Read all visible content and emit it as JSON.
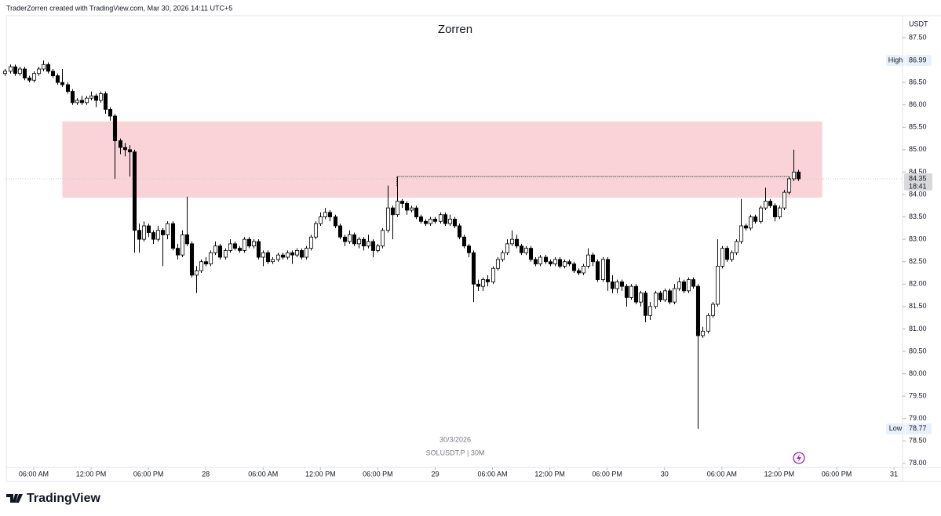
{
  "header": {
    "text": "TraderZorren created with TradingView.com, Mar 30, 2026 14:11 UTC+5"
  },
  "chart_data": {
    "type": "candlestick",
    "title": "Zorren",
    "currency": "USDT",
    "date_label": "30/3/2026",
    "symbol": "SOLUSDT.P | 30M",
    "xlim": [
      0.26,
      187.8
    ],
    "ylim": [
      77.91,
      87.99
    ],
    "xticks": [
      {
        "value": 6,
        "label": "06:00 AM"
      },
      {
        "value": 18,
        "label": "12:00 PM"
      },
      {
        "value": 30,
        "label": "06:00 PM"
      },
      {
        "value": 42,
        "label": "28"
      },
      {
        "value": 54,
        "label": "06:00 AM"
      },
      {
        "value": 66,
        "label": "12:00 PM"
      },
      {
        "value": 78,
        "label": "06:00 PM"
      },
      {
        "value": 90,
        "label": "29"
      },
      {
        "value": 102,
        "label": "06:00 AM"
      },
      {
        "value": 114,
        "label": "12:00 PM"
      },
      {
        "value": 126,
        "label": "06:00 PM"
      },
      {
        "value": 138,
        "label": "30"
      },
      {
        "value": 150,
        "label": "06:00 AM"
      },
      {
        "value": 162,
        "label": "12:00 PM"
      },
      {
        "value": 174,
        "label": "06:00 PM"
      },
      {
        "value": 186,
        "label": "31"
      }
    ],
    "yticks": [
      {
        "value": 87.5,
        "label": "87.50"
      },
      {
        "value": 86.5,
        "label": "86.50"
      },
      {
        "value": 86,
        "label": "86.00"
      },
      {
        "value": 85.5,
        "label": "85.50"
      },
      {
        "value": 85,
        "label": "85.00"
      },
      {
        "value": 84.5,
        "label": "84.50"
      },
      {
        "value": 84,
        "label": "84.00"
      },
      {
        "value": 83.5,
        "label": "83.50"
      },
      {
        "value": 83,
        "label": "83.00"
      },
      {
        "value": 82.5,
        "label": "82.50"
      },
      {
        "value": 82,
        "label": "82.00"
      },
      {
        "value": 81.5,
        "label": "81.50"
      },
      {
        "value": 81,
        "label": "81.00"
      },
      {
        "value": 80.5,
        "label": "80.50"
      },
      {
        "value": 80,
        "label": "80.00"
      },
      {
        "value": 79.5,
        "label": "79.50"
      },
      {
        "value": 79,
        "label": "79.00"
      },
      {
        "value": 78.5,
        "label": "78.50"
      },
      {
        "value": 78,
        "label": "78.00"
      }
    ],
    "up_color": "#ffffff",
    "down_color": "#000000",
    "high": {
      "label": "High",
      "value": 86.99
    },
    "low": {
      "label": "Low",
      "value": 78.77
    },
    "last_price": {
      "value": 84.35,
      "countdown": "18:41"
    },
    "zone": {
      "top": 85.63,
      "bottom": 83.93,
      "start": 12,
      "end": 171,
      "color": "#f9d3d7"
    },
    "level": {
      "value": 84.4,
      "start": 82,
      "end": 164
    },
    "candles": [
      [
        86.7,
        86.8,
        86.65,
        86.75
      ],
      [
        86.75,
        86.9,
        86.7,
        86.85
      ],
      [
        86.85,
        86.9,
        86.65,
        86.7
      ],
      [
        86.7,
        86.85,
        86.65,
        86.8
      ],
      [
        86.8,
        86.85,
        86.55,
        86.6
      ],
      [
        86.6,
        86.65,
        86.5,
        86.55
      ],
      [
        86.55,
        86.75,
        86.5,
        86.7
      ],
      [
        86.7,
        86.85,
        86.65,
        86.8
      ],
      [
        86.8,
        86.99,
        86.75,
        86.9
      ],
      [
        86.9,
        86.95,
        86.7,
        86.75
      ],
      [
        86.75,
        86.8,
        86.6,
        86.65
      ],
      [
        86.65,
        86.7,
        86.45,
        86.5
      ],
      [
        86.5,
        86.8,
        86.4,
        86.45
      ],
      [
        86.45,
        86.5,
        86.25,
        86.3
      ],
      [
        86.3,
        86.35,
        86.0,
        86.05
      ],
      [
        86.05,
        86.15,
        86.0,
        86.1
      ],
      [
        86.1,
        86.2,
        86.0,
        86.05
      ],
      [
        86.05,
        86.2,
        86.0,
        86.15
      ],
      [
        86.15,
        86.3,
        86.1,
        86.2
      ],
      [
        86.2,
        86.25,
        85.95,
        86.1
      ],
      [
        86.1,
        86.3,
        86.05,
        86.25
      ],
      [
        86.25,
        86.3,
        85.8,
        85.9
      ],
      [
        85.9,
        85.95,
        85.65,
        85.75
      ],
      [
        85.75,
        85.8,
        84.35,
        85.2
      ],
      [
        85.2,
        85.25,
        84.9,
        85.05
      ],
      [
        85.05,
        85.15,
        84.85,
        85.0
      ],
      [
        85.0,
        85.1,
        84.4,
        84.95
      ],
      [
        84.95,
        85.0,
        82.7,
        83.2
      ],
      [
        83.2,
        83.35,
        82.7,
        83.0
      ],
      [
        83.0,
        83.4,
        82.95,
        83.3
      ],
      [
        83.3,
        83.35,
        83.05,
        83.15
      ],
      [
        83.15,
        83.2,
        82.9,
        83.0
      ],
      [
        83.0,
        83.3,
        82.95,
        83.2
      ],
      [
        83.2,
        83.25,
        82.4,
        83.1
      ],
      [
        83.1,
        83.4,
        83.0,
        83.35
      ],
      [
        83.35,
        83.4,
        82.75,
        82.8
      ],
      [
        82.8,
        82.9,
        82.55,
        82.65
      ],
      [
        82.65,
        83.2,
        82.6,
        83.1
      ],
      [
        83.1,
        83.95,
        82.85,
        82.9
      ],
      [
        82.9,
        82.95,
        82.15,
        82.2
      ],
      [
        82.2,
        82.4,
        81.8,
        82.3
      ],
      [
        82.3,
        82.55,
        82.25,
        82.5
      ],
      [
        82.5,
        82.6,
        82.4,
        82.45
      ],
      [
        82.45,
        82.75,
        82.4,
        82.7
      ],
      [
        82.7,
        82.95,
        82.65,
        82.85
      ],
      [
        82.85,
        82.9,
        82.55,
        82.6
      ],
      [
        82.6,
        82.8,
        82.55,
        82.75
      ],
      [
        82.75,
        83.0,
        82.7,
        82.9
      ],
      [
        82.9,
        82.95,
        82.75,
        82.8
      ],
      [
        82.8,
        82.85,
        82.7,
        82.75
      ],
      [
        82.75,
        83.05,
        82.7,
        83.0
      ],
      [
        83.0,
        83.05,
        82.8,
        82.85
      ],
      [
        82.85,
        83.0,
        82.8,
        82.95
      ],
      [
        82.95,
        83.0,
        82.55,
        82.6
      ],
      [
        82.6,
        82.75,
        82.4,
        82.7
      ],
      [
        82.7,
        82.75,
        82.45,
        82.5
      ],
      [
        82.5,
        82.6,
        82.45,
        82.55
      ],
      [
        82.55,
        82.7,
        82.5,
        82.65
      ],
      [
        82.65,
        82.7,
        82.55,
        82.6
      ],
      [
        82.6,
        82.75,
        82.55,
        82.7
      ],
      [
        82.7,
        82.75,
        82.45,
        82.65
      ],
      [
        82.65,
        82.8,
        82.6,
        82.75
      ],
      [
        82.75,
        82.8,
        82.55,
        82.6
      ],
      [
        82.6,
        82.85,
        82.55,
        82.8
      ],
      [
        82.8,
        83.1,
        82.75,
        83.05
      ],
      [
        83.05,
        83.4,
        83.0,
        83.35
      ],
      [
        83.35,
        83.6,
        83.3,
        83.5
      ],
      [
        83.5,
        83.7,
        83.45,
        83.6
      ],
      [
        83.6,
        83.65,
        83.4,
        83.5
      ],
      [
        83.5,
        83.55,
        83.25,
        83.3
      ],
      [
        83.3,
        83.35,
        83.0,
        83.05
      ],
      [
        83.05,
        83.1,
        82.85,
        82.95
      ],
      [
        82.95,
        83.2,
        82.9,
        83.1
      ],
      [
        83.1,
        83.15,
        82.85,
        82.9
      ],
      [
        82.9,
        83.05,
        82.8,
        83.0
      ],
      [
        83.0,
        83.05,
        82.75,
        82.85
      ],
      [
        82.85,
        83.1,
        82.8,
        82.95
      ],
      [
        82.95,
        83.0,
        82.6,
        82.75
      ],
      [
        82.75,
        82.9,
        82.7,
        82.85
      ],
      [
        82.85,
        83.25,
        82.8,
        83.2
      ],
      [
        83.2,
        84.2,
        83.15,
        83.7
      ],
      [
        83.7,
        83.75,
        83.0,
        83.55
      ],
      [
        83.55,
        84.4,
        83.5,
        83.85
      ],
      [
        83.85,
        83.9,
        83.7,
        83.8
      ],
      [
        83.8,
        83.85,
        83.55,
        83.65
      ],
      [
        83.65,
        83.75,
        83.6,
        83.7
      ],
      [
        83.7,
        83.75,
        83.45,
        83.5
      ],
      [
        83.5,
        83.55,
        83.35,
        83.4
      ],
      [
        83.4,
        83.45,
        83.3,
        83.35
      ],
      [
        83.35,
        83.5,
        83.3,
        83.45
      ],
      [
        83.45,
        83.5,
        83.35,
        83.4
      ],
      [
        83.4,
        83.6,
        83.35,
        83.55
      ],
      [
        83.55,
        83.6,
        83.3,
        83.35
      ],
      [
        83.35,
        83.55,
        83.3,
        83.45
      ],
      [
        83.45,
        83.5,
        83.25,
        83.3
      ],
      [
        83.3,
        83.35,
        83.0,
        83.05
      ],
      [
        83.05,
        83.1,
        82.8,
        82.85
      ],
      [
        82.85,
        82.9,
        82.6,
        82.7
      ],
      [
        82.7,
        82.75,
        81.6,
        82.0
      ],
      [
        82.0,
        82.1,
        81.85,
        81.95
      ],
      [
        81.95,
        82.15,
        81.85,
        82.1
      ],
      [
        82.1,
        82.2,
        81.95,
        82.05
      ],
      [
        82.05,
        82.4,
        82.0,
        82.35
      ],
      [
        82.35,
        82.6,
        82.3,
        82.55
      ],
      [
        82.55,
        82.75,
        82.5,
        82.7
      ],
      [
        82.7,
        83.0,
        82.65,
        82.9
      ],
      [
        82.9,
        83.2,
        82.85,
        83.0
      ],
      [
        83.0,
        83.1,
        82.8,
        82.85
      ],
      [
        82.85,
        82.9,
        82.65,
        82.7
      ],
      [
        82.7,
        82.85,
        82.65,
        82.8
      ],
      [
        82.8,
        82.85,
        82.5,
        82.55
      ],
      [
        82.55,
        82.6,
        82.4,
        82.45
      ],
      [
        82.45,
        82.65,
        82.4,
        82.6
      ],
      [
        82.6,
        82.65,
        82.45,
        82.5
      ],
      [
        82.5,
        82.55,
        82.4,
        82.45
      ],
      [
        82.45,
        82.6,
        82.4,
        82.55
      ],
      [
        82.55,
        82.6,
        82.35,
        82.4
      ],
      [
        82.4,
        82.55,
        82.35,
        82.5
      ],
      [
        82.5,
        82.55,
        82.4,
        82.45
      ],
      [
        82.45,
        82.5,
        82.25,
        82.3
      ],
      [
        82.3,
        82.35,
        82.2,
        82.25
      ],
      [
        82.25,
        82.45,
        82.2,
        82.4
      ],
      [
        82.4,
        82.8,
        82.35,
        82.65
      ],
      [
        82.65,
        82.7,
        82.4,
        82.5
      ],
      [
        82.5,
        82.55,
        82.05,
        82.1
      ],
      [
        82.1,
        82.6,
        82.05,
        82.55
      ],
      [
        82.55,
        82.6,
        81.85,
        82.05
      ],
      [
        82.05,
        82.2,
        81.8,
        81.9
      ],
      [
        81.9,
        82.1,
        81.8,
        82.05
      ],
      [
        82.05,
        82.1,
        81.85,
        81.95
      ],
      [
        81.95,
        82.0,
        81.5,
        81.7
      ],
      [
        81.7,
        82.0,
        81.65,
        81.95
      ],
      [
        81.95,
        82.0,
        81.55,
        81.6
      ],
      [
        81.6,
        81.85,
        81.5,
        81.8
      ],
      [
        81.8,
        81.85,
        81.15,
        81.3
      ],
      [
        81.3,
        81.6,
        81.2,
        81.5
      ],
      [
        81.5,
        81.85,
        81.45,
        81.8
      ],
      [
        81.8,
        81.85,
        81.6,
        81.65
      ],
      [
        81.65,
        81.9,
        81.6,
        81.85
      ],
      [
        81.85,
        81.9,
        81.55,
        81.6
      ],
      [
        81.6,
        82.0,
        81.55,
        81.9
      ],
      [
        81.9,
        82.15,
        81.85,
        82.05
      ],
      [
        82.05,
        82.1,
        81.8,
        81.85
      ],
      [
        81.85,
        82.15,
        81.8,
        82.1
      ],
      [
        82.1,
        82.15,
        81.9,
        81.95
      ],
      [
        81.95,
        82.0,
        78.77,
        80.85
      ],
      [
        80.85,
        81.05,
        80.8,
        80.95
      ],
      [
        80.95,
        81.35,
        80.9,
        81.3
      ],
      [
        81.3,
        81.6,
        81.25,
        81.55
      ],
      [
        81.55,
        83.0,
        81.5,
        82.4
      ],
      [
        82.4,
        82.85,
        82.35,
        82.8
      ],
      [
        82.8,
        82.85,
        82.5,
        82.55
      ],
      [
        82.55,
        82.75,
        82.5,
        82.7
      ],
      [
        82.7,
        83.0,
        82.65,
        82.95
      ],
      [
        82.95,
        83.9,
        82.9,
        83.3
      ],
      [
        83.3,
        83.35,
        83.2,
        83.25
      ],
      [
        83.25,
        83.55,
        83.2,
        83.5
      ],
      [
        83.5,
        83.55,
        83.35,
        83.4
      ],
      [
        83.4,
        83.75,
        83.35,
        83.7
      ],
      [
        83.7,
        84.15,
        83.65,
        83.85
      ],
      [
        83.85,
        83.9,
        83.7,
        83.75
      ],
      [
        83.75,
        83.8,
        83.4,
        83.5
      ],
      [
        83.5,
        83.75,
        83.45,
        83.7
      ],
      [
        83.7,
        84.1,
        83.65,
        84.05
      ],
      [
        84.05,
        84.4,
        84.0,
        84.35
      ],
      [
        84.35,
        85.0,
        84.3,
        84.5
      ],
      [
        84.5,
        84.55,
        84.3,
        84.35
      ]
    ]
  },
  "footer": {
    "brand": "TradingView"
  }
}
